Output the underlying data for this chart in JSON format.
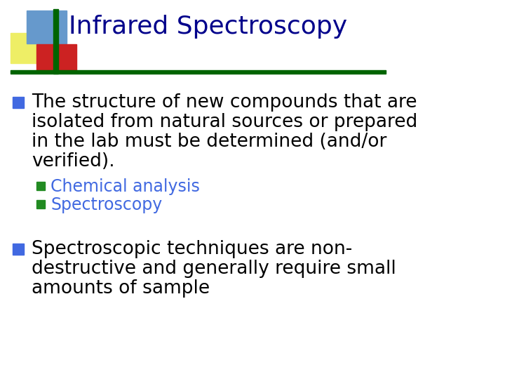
{
  "title": "Infrared Spectroscopy",
  "title_color": "#00008B",
  "title_fontsize": 26,
  "title_font": "Comic Sans MS",
  "underline_color": "#006400",
  "background_color": "#FFFFFF",
  "bullet_color": "#4169E1",
  "bullet1_text_lines": [
    "The structure of new compounds that are",
    "isolated from natural sources or prepared",
    "in the lab must be determined (and/or",
    "verified)."
  ],
  "sub_bullet_color": "#228B22",
  "sub_bullet1": "Chemical analysis",
  "sub_bullet2": "Spectroscopy",
  "sub_bullet_text_color": "#4169E1",
  "bullet2_text_lines": [
    "Spectroscopic techniques are non-",
    "destructive and generally require small",
    "amounts of sample"
  ],
  "bullet_text_color": "#000000",
  "bullet_fontsize": 19,
  "sub_bullet_fontsize": 17,
  "logo_colors": {
    "blue_rect": "#6699CC",
    "yellow_rect": "#EEEE66",
    "red_rect": "#CC2222",
    "green_line": "#006400"
  }
}
